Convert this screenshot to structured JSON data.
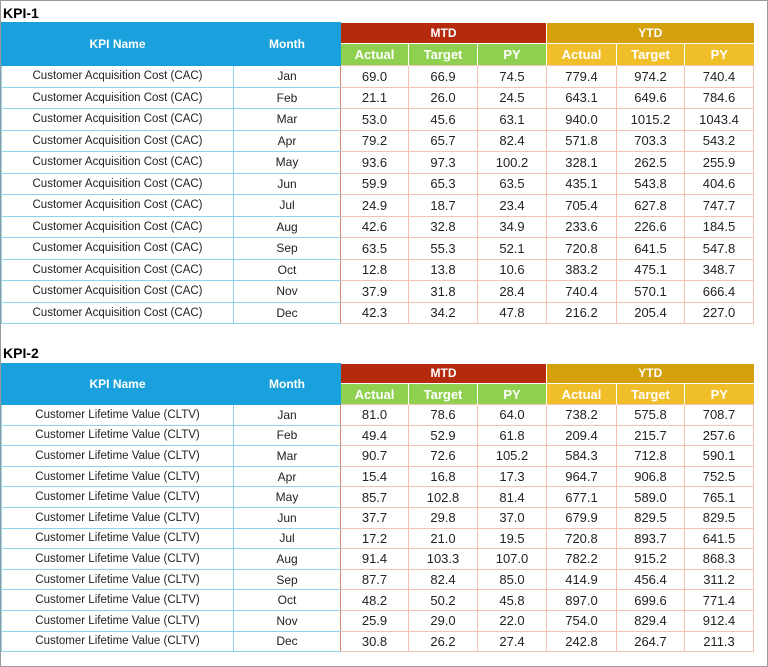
{
  "kpis": [
    {
      "title": "KPI-1",
      "headers": {
        "kpi_name": "KPI Name",
        "month": "Month",
        "mtd": "MTD",
        "ytd": "YTD",
        "actual": "Actual",
        "target": "Target",
        "py": "PY"
      },
      "rows": [
        {
          "name": "Customer Acquisition Cost (CAC)",
          "month": "Jan",
          "mtd_actual": "69.0",
          "mtd_target": "66.9",
          "mtd_py": "74.5",
          "ytd_actual": "779.4",
          "ytd_target": "974.2",
          "ytd_py": "740.4"
        },
        {
          "name": "Customer Acquisition Cost (CAC)",
          "month": "Feb",
          "mtd_actual": "21.1",
          "mtd_target": "26.0",
          "mtd_py": "24.5",
          "ytd_actual": "643.1",
          "ytd_target": "649.6",
          "ytd_py": "784.6"
        },
        {
          "name": "Customer Acquisition Cost (CAC)",
          "month": "Mar",
          "mtd_actual": "53.0",
          "mtd_target": "45.6",
          "mtd_py": "63.1",
          "ytd_actual": "940.0",
          "ytd_target": "1015.2",
          "ytd_py": "1043.4"
        },
        {
          "name": "Customer Acquisition Cost (CAC)",
          "month": "Apr",
          "mtd_actual": "79.2",
          "mtd_target": "65.7",
          "mtd_py": "82.4",
          "ytd_actual": "571.8",
          "ytd_target": "703.3",
          "ytd_py": "543.2"
        },
        {
          "name": "Customer Acquisition Cost (CAC)",
          "month": "May",
          "mtd_actual": "93.6",
          "mtd_target": "97.3",
          "mtd_py": "100.2",
          "ytd_actual": "328.1",
          "ytd_target": "262.5",
          "ytd_py": "255.9"
        },
        {
          "name": "Customer Acquisition Cost (CAC)",
          "month": "Jun",
          "mtd_actual": "59.9",
          "mtd_target": "65.3",
          "mtd_py": "63.5",
          "ytd_actual": "435.1",
          "ytd_target": "543.8",
          "ytd_py": "404.6"
        },
        {
          "name": "Customer Acquisition Cost (CAC)",
          "month": "Jul",
          "mtd_actual": "24.9",
          "mtd_target": "18.7",
          "mtd_py": "23.4",
          "ytd_actual": "705.4",
          "ytd_target": "627.8",
          "ytd_py": "747.7"
        },
        {
          "name": "Customer Acquisition Cost (CAC)",
          "month": "Aug",
          "mtd_actual": "42.6",
          "mtd_target": "32.8",
          "mtd_py": "34.9",
          "ytd_actual": "233.6",
          "ytd_target": "226.6",
          "ytd_py": "184.5"
        },
        {
          "name": "Customer Acquisition Cost (CAC)",
          "month": "Sep",
          "mtd_actual": "63.5",
          "mtd_target": "55.3",
          "mtd_py": "52.1",
          "ytd_actual": "720.8",
          "ytd_target": "641.5",
          "ytd_py": "547.8"
        },
        {
          "name": "Customer Acquisition Cost (CAC)",
          "month": "Oct",
          "mtd_actual": "12.8",
          "mtd_target": "13.8",
          "mtd_py": "10.6",
          "ytd_actual": "383.2",
          "ytd_target": "475.1",
          "ytd_py": "348.7"
        },
        {
          "name": "Customer Acquisition Cost (CAC)",
          "month": "Nov",
          "mtd_actual": "37.9",
          "mtd_target": "31.8",
          "mtd_py": "28.4",
          "ytd_actual": "740.4",
          "ytd_target": "570.1",
          "ytd_py": "666.4"
        },
        {
          "name": "Customer Acquisition Cost (CAC)",
          "month": "Dec",
          "mtd_actual": "42.3",
          "mtd_target": "34.2",
          "mtd_py": "47.8",
          "ytd_actual": "216.2",
          "ytd_target": "205.4",
          "ytd_py": "227.0"
        }
      ]
    },
    {
      "title": "KPI-2",
      "headers": {
        "kpi_name": "KPI Name",
        "month": "Month",
        "mtd": "MTD",
        "ytd": "YTD",
        "actual": "Actual",
        "target": "Target",
        "py": "PY"
      },
      "rows": [
        {
          "name": "Customer Lifetime Value (CLTV)",
          "month": "Jan",
          "mtd_actual": "81.0",
          "mtd_target": "78.6",
          "mtd_py": "64.0",
          "ytd_actual": "738.2",
          "ytd_target": "575.8",
          "ytd_py": "708.7"
        },
        {
          "name": "Customer Lifetime Value (CLTV)",
          "month": "Feb",
          "mtd_actual": "49.4",
          "mtd_target": "52.9",
          "mtd_py": "61.8",
          "ytd_actual": "209.4",
          "ytd_target": "215.7",
          "ytd_py": "257.6"
        },
        {
          "name": "Customer Lifetime Value (CLTV)",
          "month": "Mar",
          "mtd_actual": "90.7",
          "mtd_target": "72.6",
          "mtd_py": "105.2",
          "ytd_actual": "584.3",
          "ytd_target": "712.8",
          "ytd_py": "590.1"
        },
        {
          "name": "Customer Lifetime Value (CLTV)",
          "month": "Apr",
          "mtd_actual": "15.4",
          "mtd_target": "16.8",
          "mtd_py": "17.3",
          "ytd_actual": "964.7",
          "ytd_target": "906.8",
          "ytd_py": "752.5"
        },
        {
          "name": "Customer Lifetime Value (CLTV)",
          "month": "May",
          "mtd_actual": "85.7",
          "mtd_target": "102.8",
          "mtd_py": "81.4",
          "ytd_actual": "677.1",
          "ytd_target": "589.0",
          "ytd_py": "765.1"
        },
        {
          "name": "Customer Lifetime Value (CLTV)",
          "month": "Jun",
          "mtd_actual": "37.7",
          "mtd_target": "29.8",
          "mtd_py": "37.0",
          "ytd_actual": "679.9",
          "ytd_target": "829.5",
          "ytd_py": "829.5"
        },
        {
          "name": "Customer Lifetime Value (CLTV)",
          "month": "Jul",
          "mtd_actual": "17.2",
          "mtd_target": "21.0",
          "mtd_py": "19.5",
          "ytd_actual": "720.8",
          "ytd_target": "893.7",
          "ytd_py": "641.5"
        },
        {
          "name": "Customer Lifetime Value (CLTV)",
          "month": "Aug",
          "mtd_actual": "91.4",
          "mtd_target": "103.3",
          "mtd_py": "107.0",
          "ytd_actual": "782.2",
          "ytd_target": "915.2",
          "ytd_py": "868.3"
        },
        {
          "name": "Customer Lifetime Value (CLTV)",
          "month": "Sep",
          "mtd_actual": "87.7",
          "mtd_target": "82.4",
          "mtd_py": "85.0",
          "ytd_actual": "414.9",
          "ytd_target": "456.4",
          "ytd_py": "311.2"
        },
        {
          "name": "Customer Lifetime Value (CLTV)",
          "month": "Oct",
          "mtd_actual": "48.2",
          "mtd_target": "50.2",
          "mtd_py": "45.8",
          "ytd_actual": "897.0",
          "ytd_target": "699.6",
          "ytd_py": "771.4"
        },
        {
          "name": "Customer Lifetime Value (CLTV)",
          "month": "Nov",
          "mtd_actual": "25.9",
          "mtd_target": "29.0",
          "mtd_py": "22.0",
          "ytd_actual": "754.0",
          "ytd_target": "829.4",
          "ytd_py": "912.4"
        },
        {
          "name": "Customer Lifetime Value (CLTV)",
          "month": "Dec",
          "mtd_actual": "30.8",
          "mtd_target": "26.2",
          "mtd_py": "27.4",
          "ytd_actual": "242.8",
          "ytd_target": "264.7",
          "ytd_py": "211.3"
        }
      ]
    }
  ],
  "colors": {
    "header_blue": "#1aa0dc",
    "mtd_red": "#b52a0c",
    "mtd_green": "#8fd050",
    "ytd_gold": "#d4a00c",
    "ytd_yellow": "#f0be28"
  }
}
